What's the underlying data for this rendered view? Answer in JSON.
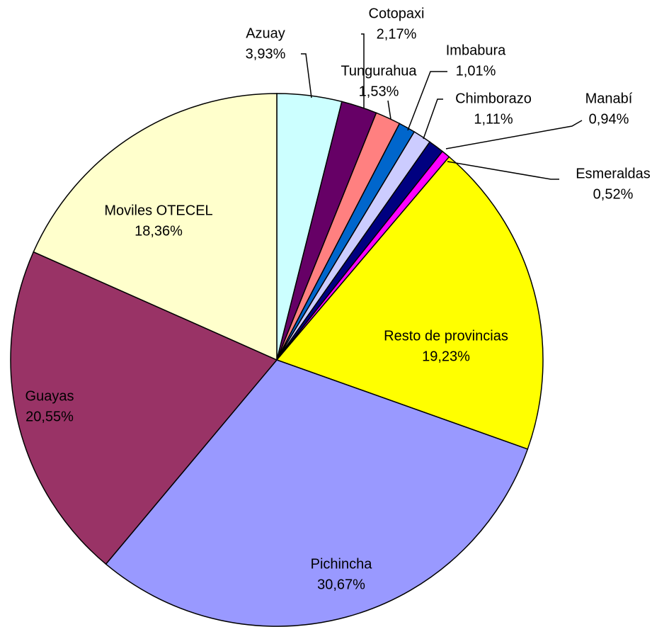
{
  "chart_data": {
    "type": "pie",
    "categories": [
      "Azuay",
      "Cotopaxi",
      "Tungurahua",
      "Imbabura",
      "Chimborazo",
      "Manabí",
      "Esmeraldas",
      "Resto de provincias",
      "Pichincha",
      "Guayas",
      "Moviles OTECEL"
    ],
    "values": [
      3.93,
      2.17,
      1.53,
      1.01,
      1.11,
      0.94,
      0.52,
      19.23,
      30.67,
      20.55,
      18.36
    ],
    "value_labels": [
      "3,93%",
      "2,17%",
      "1,53%",
      "1,01%",
      "1,11%",
      "0,94%",
      "0,52%",
      "19,23%",
      "30,67%",
      "20,55%",
      "18,36%"
    ],
    "colors": [
      "#ccffff",
      "#660066",
      "#ff8080",
      "#0066cc",
      "#ccccff",
      "#000080",
      "#ff00ff",
      "#ffff00",
      "#9999ff",
      "#993366",
      "#ffffcc"
    ]
  }
}
